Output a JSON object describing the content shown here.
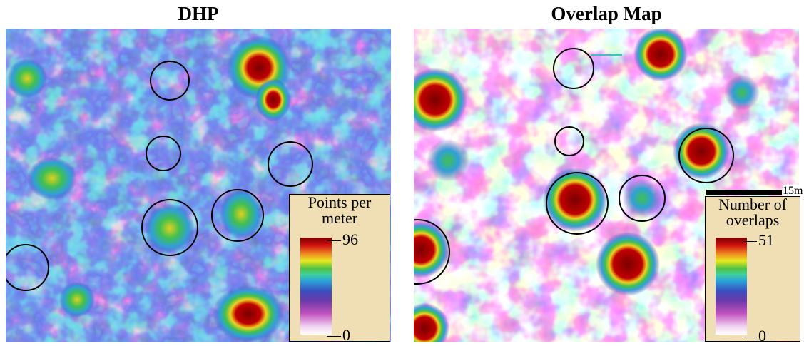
{
  "panels": [
    {
      "title": "DHP",
      "legend_title": "Points per meter",
      "legend_max": 96,
      "legend_min": 0
    },
    {
      "title": "Overlap Map",
      "legend_title": "Number of overlaps",
      "legend_max": 51,
      "legend_min": 0
    }
  ],
  "scale_bar": "15m"
}
